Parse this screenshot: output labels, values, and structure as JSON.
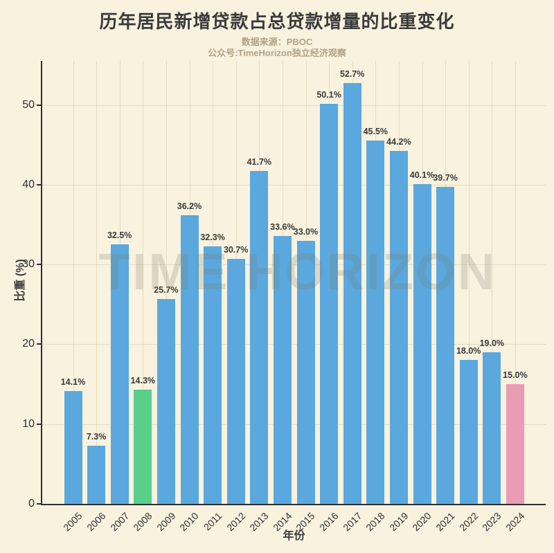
{
  "title": "历年居民新增贷款占总贷款增量的比重变化",
  "subtitle": {
    "line1": "数据来源：PBOC",
    "line2": "公众号:TimeHorizon独立经济观察"
  },
  "watermark": "TIME HORIZON",
  "colors": {
    "background": "#F8F2DF",
    "bar_default": "#5BA8DE",
    "title_text": "#3A3A3A",
    "subtitle_text": "#B2A387",
    "axis": "#2F2F2F"
  },
  "chart_data": {
    "type": "bar",
    "title": "历年居民新增贷款占总贷款增量的比重变化",
    "categories": [
      "2005",
      "2006",
      "2007",
      "2008",
      "2009",
      "2010",
      "2011",
      "2012",
      "2013",
      "2014",
      "2015",
      "2016",
      "2017",
      "2018",
      "2019",
      "2020",
      "2021",
      "2022",
      "2023",
      "2024"
    ],
    "values": [
      14.1,
      7.3,
      32.5,
      14.3,
      25.7,
      36.2,
      32.3,
      30.7,
      41.7,
      33.6,
      33.0,
      50.1,
      52.7,
      45.5,
      44.2,
      40.1,
      39.7,
      18.0,
      19.0,
      15.0
    ],
    "value_label_suffix": "%",
    "xlabel": "年份",
    "ylabel": "比重 (%)",
    "ylim": [
      0,
      55.5
    ],
    "yticks": [
      0,
      10,
      20,
      30,
      40,
      50
    ],
    "grid": true,
    "legend": null,
    "bar_color_default": "#5BA8DE",
    "highlight_bars": {
      "2008": "#58D08C",
      "2024": "#E99CB4"
    }
  }
}
